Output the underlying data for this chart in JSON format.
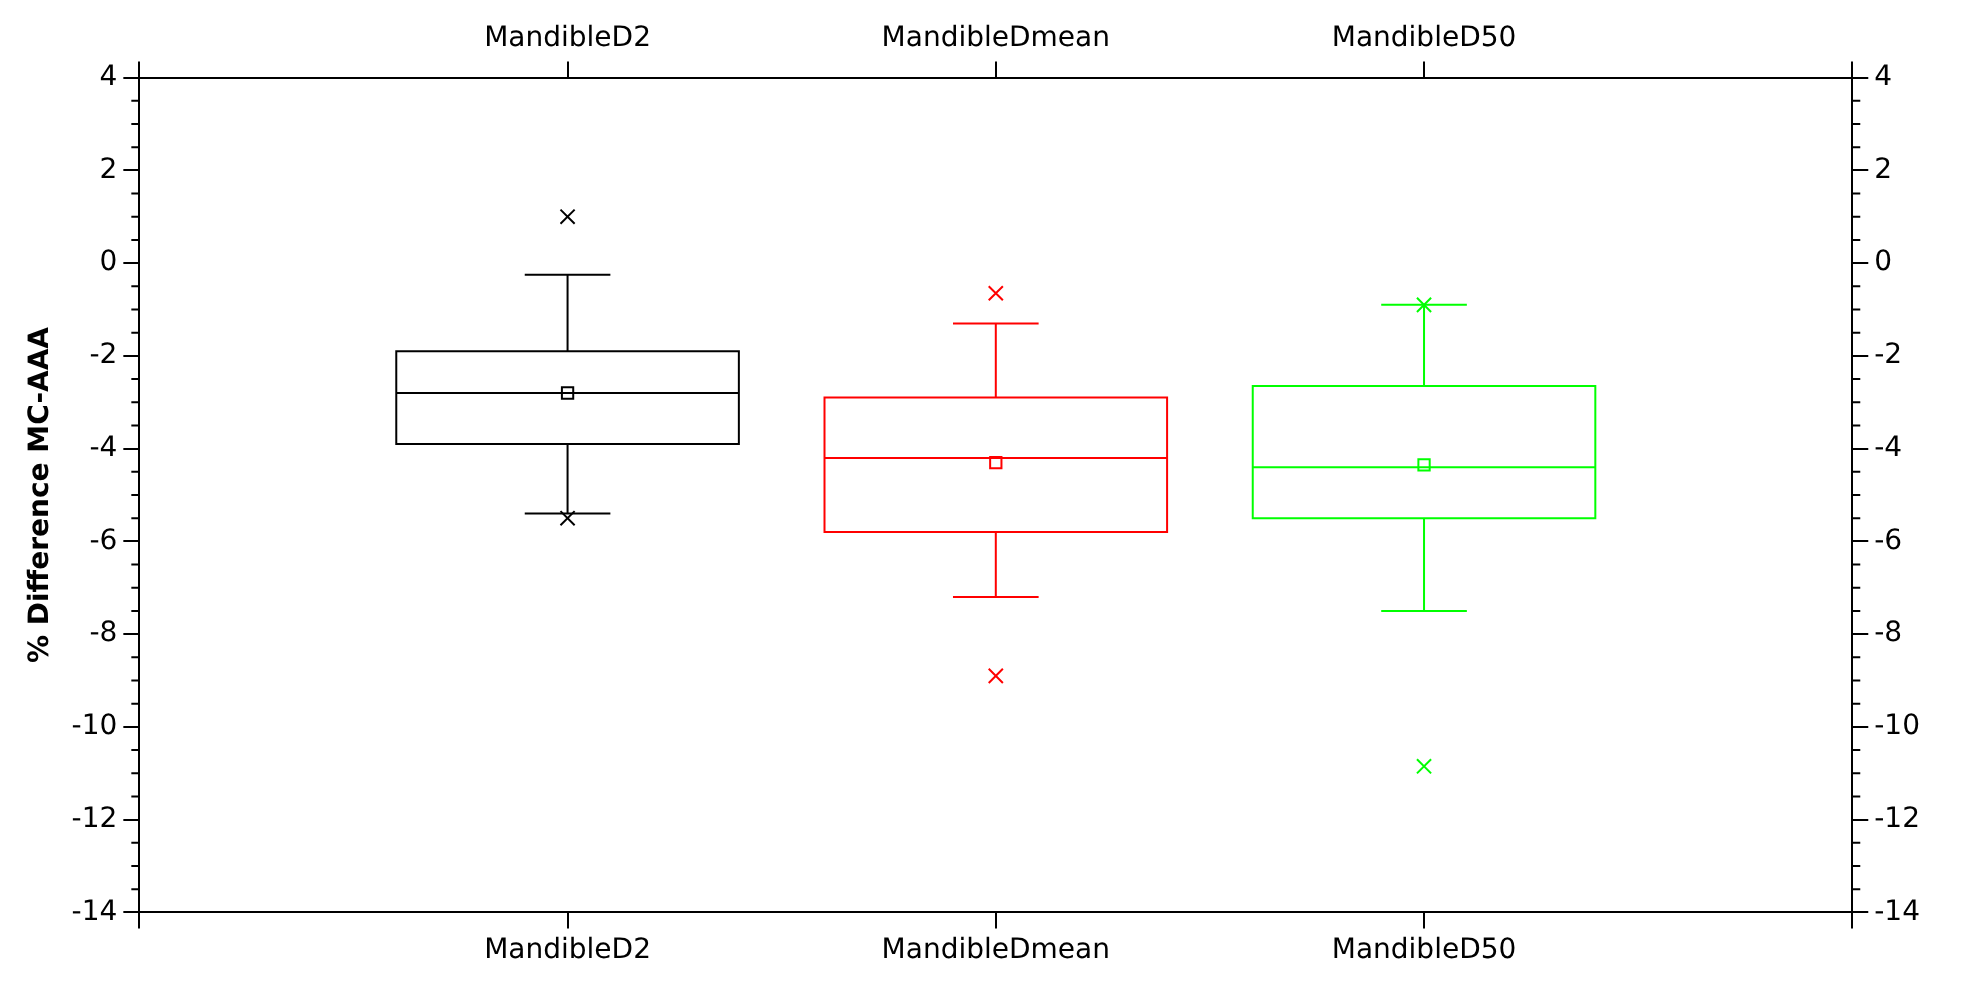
{
  "chart_data": {
    "type": "box",
    "ylabel": "% Difference MC-AAA",
    "categories": [
      "MandibleD2",
      "MandibleDmean",
      "MandibleD50"
    ],
    "colors": [
      "#000000",
      "#ff0000",
      "#00ff00"
    ],
    "boxes": [
      {
        "low": -5.4,
        "q1": -3.9,
        "median": -2.8,
        "q3": -1.9,
        "high": -0.25,
        "mean": -2.8,
        "outliers": [
          1.0,
          -5.5
        ]
      },
      {
        "low": -7.2,
        "q1": -5.8,
        "median": -4.2,
        "q3": -2.9,
        "high": -1.3,
        "mean": -4.3,
        "outliers": [
          -0.65,
          -8.9
        ]
      },
      {
        "low": -7.5,
        "q1": -5.5,
        "median": -4.4,
        "q3": -2.65,
        "high": -0.9,
        "mean": -4.35,
        "outliers": [
          -0.9,
          -10.85
        ]
      }
    ],
    "ylim": [
      -14,
      4
    ],
    "yticks": [
      -14,
      -12,
      -10,
      -8,
      -6,
      -4,
      -2,
      0,
      2,
      4
    ],
    "y2lim": [
      -14,
      4
    ],
    "y2ticks": [
      -14,
      -12,
      -10,
      -8,
      -6,
      -4,
      -2,
      0,
      2,
      4
    ],
    "grid": false,
    "legend": false
  }
}
